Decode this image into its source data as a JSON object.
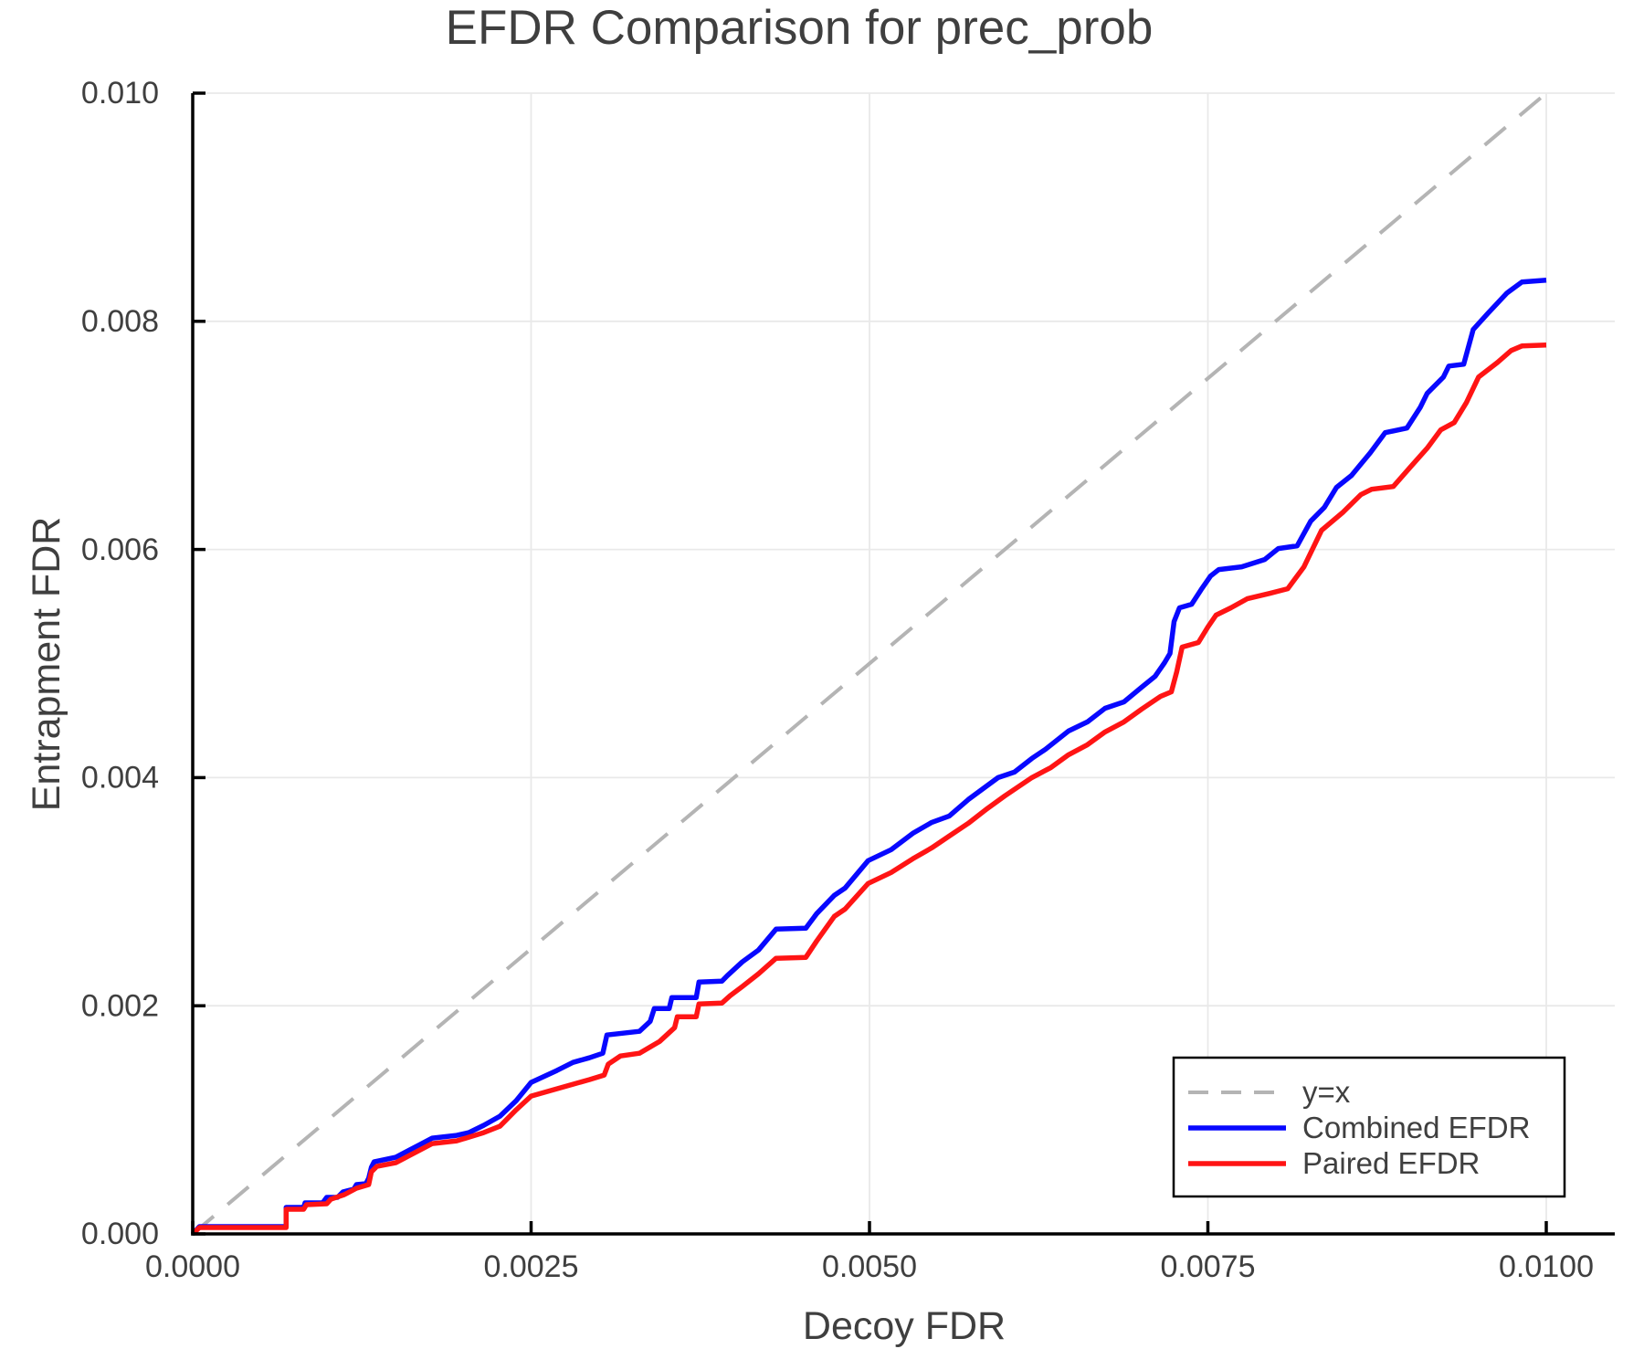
{
  "chart_data": {
    "type": "line",
    "title": "EFDR Comparison for prec_prob",
    "xlabel": "Decoy FDR",
    "ylabel": "Entrapment FDR",
    "xlim": [
      0,
      0.01
    ],
    "ylim": [
      0,
      0.01
    ],
    "grid": true,
    "legend_position": "lower right",
    "xticks": {
      "values": [
        0,
        0.0025,
        0.005,
        0.0075,
        0.01
      ],
      "labels": [
        "0.0000",
        "0.0025",
        "0.0050",
        "0.0075",
        "0.0100"
      ]
    },
    "yticks": {
      "values": [
        0,
        0.002,
        0.004,
        0.006,
        0.008,
        0.01
      ],
      "labels": [
        "0.000",
        "0.002",
        "0.004",
        "0.006",
        "0.008",
        "0.010"
      ]
    },
    "series": [
      {
        "name": "y=x",
        "color": "#b4b4b4",
        "dash": "30 20",
        "points": [
          [
            0,
            0
          ],
          [
            0.01,
            0.01
          ]
        ]
      },
      {
        "name": "Combined EFDR",
        "color": "#0808ff",
        "dash": null,
        "points": [
          [
            0.0,
            0.0
          ],
          [
            5e-05,
            6.4e-05
          ],
          [
            0.00069,
            6.4e-05
          ],
          [
            0.00069,
            0.000232
          ],
          [
            0.00082,
            0.000232
          ],
          [
            0.00083,
            0.000272
          ],
          [
            0.00096,
            0.000272
          ],
          [
            0.00099,
            0.00032
          ],
          [
            0.00107,
            0.00032
          ],
          [
            0.00111,
            0.000368
          ],
          [
            0.00119,
            0.000392
          ],
          [
            0.00121,
            0.000432
          ],
          [
            0.00128,
            0.00044
          ],
          [
            0.0013,
            0.000488
          ],
          [
            0.00132,
            0.000584
          ],
          [
            0.00134,
            0.000632
          ],
          [
            0.0015,
            0.000672
          ],
          [
            0.00159,
            0.000728
          ],
          [
            0.00168,
            0.000784
          ],
          [
            0.00177,
            0.00084
          ],
          [
            0.00195,
            0.000864
          ],
          [
            0.00204,
            0.000888
          ],
          [
            0.00215,
            0.000952
          ],
          [
            0.00227,
            0.001032
          ],
          [
            0.00239,
            0.001168
          ],
          [
            0.0025,
            0.001328
          ],
          [
            0.00269,
            0.001432
          ],
          [
            0.00281,
            0.001504
          ],
          [
            0.00293,
            0.001544
          ],
          [
            0.00303,
            0.001584
          ],
          [
            0.00306,
            0.001744
          ],
          [
            0.0033,
            0.001776
          ],
          [
            0.00338,
            0.001864
          ],
          [
            0.00341,
            0.001976
          ],
          [
            0.00352,
            0.001976
          ],
          [
            0.00354,
            0.002072
          ],
          [
            0.00372,
            0.002072
          ],
          [
            0.00374,
            0.002208
          ],
          [
            0.00391,
            0.002216
          ],
          [
            0.00395,
            0.002264
          ],
          [
            0.00406,
            0.002384
          ],
          [
            0.00418,
            0.002488
          ],
          [
            0.00431,
            0.002672
          ],
          [
            0.00453,
            0.00268
          ],
          [
            0.00461,
            0.002808
          ],
          [
            0.00474,
            0.002968
          ],
          [
            0.00482,
            0.003032
          ],
          [
            0.00499,
            0.003272
          ],
          [
            0.00516,
            0.003368
          ],
          [
            0.00532,
            0.003512
          ],
          [
            0.00546,
            0.003608
          ],
          [
            0.00559,
            0.003664
          ],
          [
            0.00573,
            0.003808
          ],
          [
            0.00595,
            0.004
          ],
          [
            0.00607,
            0.004048
          ],
          [
            0.0062,
            0.004168
          ],
          [
            0.0063,
            0.004248
          ],
          [
            0.00647,
            0.004408
          ],
          [
            0.00661,
            0.004488
          ],
          [
            0.00674,
            0.004608
          ],
          [
            0.00688,
            0.004664
          ],
          [
            0.00701,
            0.004792
          ],
          [
            0.00711,
            0.004888
          ],
          [
            0.00718,
            0.005008
          ],
          [
            0.00722,
            0.005088
          ],
          [
            0.00725,
            0.005368
          ],
          [
            0.00729,
            0.005488
          ],
          [
            0.00738,
            0.00552
          ],
          [
            0.00745,
            0.005648
          ],
          [
            0.00752,
            0.005768
          ],
          [
            0.00758,
            0.005824
          ],
          [
            0.00775,
            0.005848
          ],
          [
            0.00792,
            0.005912
          ],
          [
            0.00802,
            0.006008
          ],
          [
            0.00816,
            0.006032
          ],
          [
            0.00826,
            0.006248
          ],
          [
            0.00836,
            0.006368
          ],
          [
            0.00845,
            0.006544
          ],
          [
            0.00856,
            0.006648
          ],
          [
            0.0087,
            0.006848
          ],
          [
            0.00881,
            0.007024
          ],
          [
            0.00897,
            0.007064
          ],
          [
            0.00907,
            0.007248
          ],
          [
            0.00912,
            0.007368
          ],
          [
            0.00924,
            0.007512
          ],
          [
            0.00928,
            0.007608
          ],
          [
            0.00939,
            0.007624
          ],
          [
            0.00946,
            0.007928
          ],
          [
            0.00957,
            0.008072
          ],
          [
            0.00971,
            0.008248
          ],
          [
            0.00982,
            0.008344
          ],
          [
            0.01,
            0.00836
          ]
        ]
      },
      {
        "name": "Paired EFDR",
        "color": "#ff1414",
        "dash": null,
        "points": [
          [
            0.0,
            0.0
          ],
          [
            5e-05,
            5.6e-05
          ],
          [
            0.00069,
            5.6e-05
          ],
          [
            0.00069,
            0.000216
          ],
          [
            0.00082,
            0.000216
          ],
          [
            0.00084,
            0.000256
          ],
          [
            0.00099,
            0.000264
          ],
          [
            0.00102,
            0.000304
          ],
          [
            0.00112,
            0.000344
          ],
          [
            0.00121,
            0.0004
          ],
          [
            0.0013,
            0.000432
          ],
          [
            0.00132,
            0.000544
          ],
          [
            0.00136,
            0.000592
          ],
          [
            0.0015,
            0.000624
          ],
          [
            0.00159,
            0.00068
          ],
          [
            0.00168,
            0.000736
          ],
          [
            0.00177,
            0.000792
          ],
          [
            0.00195,
            0.000816
          ],
          [
            0.00204,
            0.000848
          ],
          [
            0.00215,
            0.000888
          ],
          [
            0.00227,
            0.000944
          ],
          [
            0.00239,
            0.001088
          ],
          [
            0.0025,
            0.001208
          ],
          [
            0.00269,
            0.001272
          ],
          [
            0.00281,
            0.001312
          ],
          [
            0.00293,
            0.001352
          ],
          [
            0.00304,
            0.001392
          ],
          [
            0.00307,
            0.001488
          ],
          [
            0.00316,
            0.00156
          ],
          [
            0.0033,
            0.001584
          ],
          [
            0.00345,
            0.001688
          ],
          [
            0.00356,
            0.001808
          ],
          [
            0.00358,
            0.001904
          ],
          [
            0.00372,
            0.001904
          ],
          [
            0.00374,
            0.002016
          ],
          [
            0.00391,
            0.002024
          ],
          [
            0.00397,
            0.002088
          ],
          [
            0.00406,
            0.002168
          ],
          [
            0.00418,
            0.00228
          ],
          [
            0.00431,
            0.002416
          ],
          [
            0.00453,
            0.002424
          ],
          [
            0.00461,
            0.002568
          ],
          [
            0.00474,
            0.002784
          ],
          [
            0.00482,
            0.002848
          ],
          [
            0.00499,
            0.003072
          ],
          [
            0.00516,
            0.003168
          ],
          [
            0.00532,
            0.003288
          ],
          [
            0.00546,
            0.003384
          ],
          [
            0.00559,
            0.003488
          ],
          [
            0.00573,
            0.0036
          ],
          [
            0.00586,
            0.00372
          ],
          [
            0.006,
            0.00384
          ],
          [
            0.0062,
            0.004
          ],
          [
            0.00634,
            0.004088
          ],
          [
            0.00647,
            0.0042
          ],
          [
            0.00661,
            0.004288
          ],
          [
            0.00674,
            0.0044
          ],
          [
            0.00688,
            0.004488
          ],
          [
            0.00701,
            0.0046
          ],
          [
            0.00715,
            0.004712
          ],
          [
            0.00723,
            0.004752
          ],
          [
            0.00727,
            0.004928
          ],
          [
            0.00731,
            0.005144
          ],
          [
            0.00743,
            0.005184
          ],
          [
            0.0075,
            0.00532
          ],
          [
            0.00756,
            0.005424
          ],
          [
            0.00767,
            0.005488
          ],
          [
            0.00779,
            0.005568
          ],
          [
            0.00796,
            0.005616
          ],
          [
            0.00809,
            0.005656
          ],
          [
            0.00821,
            0.005848
          ],
          [
            0.00834,
            0.006168
          ],
          [
            0.0085,
            0.006328
          ],
          [
            0.00863,
            0.00648
          ],
          [
            0.00871,
            0.006528
          ],
          [
            0.00887,
            0.006552
          ],
          [
            0.009,
            0.006728
          ],
          [
            0.00912,
            0.006888
          ],
          [
            0.00922,
            0.007048
          ],
          [
            0.00932,
            0.007112
          ],
          [
            0.00941,
            0.007288
          ],
          [
            0.0095,
            0.007512
          ],
          [
            0.00964,
            0.00764
          ],
          [
            0.00974,
            0.007744
          ],
          [
            0.00982,
            0.007784
          ],
          [
            0.01,
            0.007792
          ]
        ]
      }
    ]
  }
}
